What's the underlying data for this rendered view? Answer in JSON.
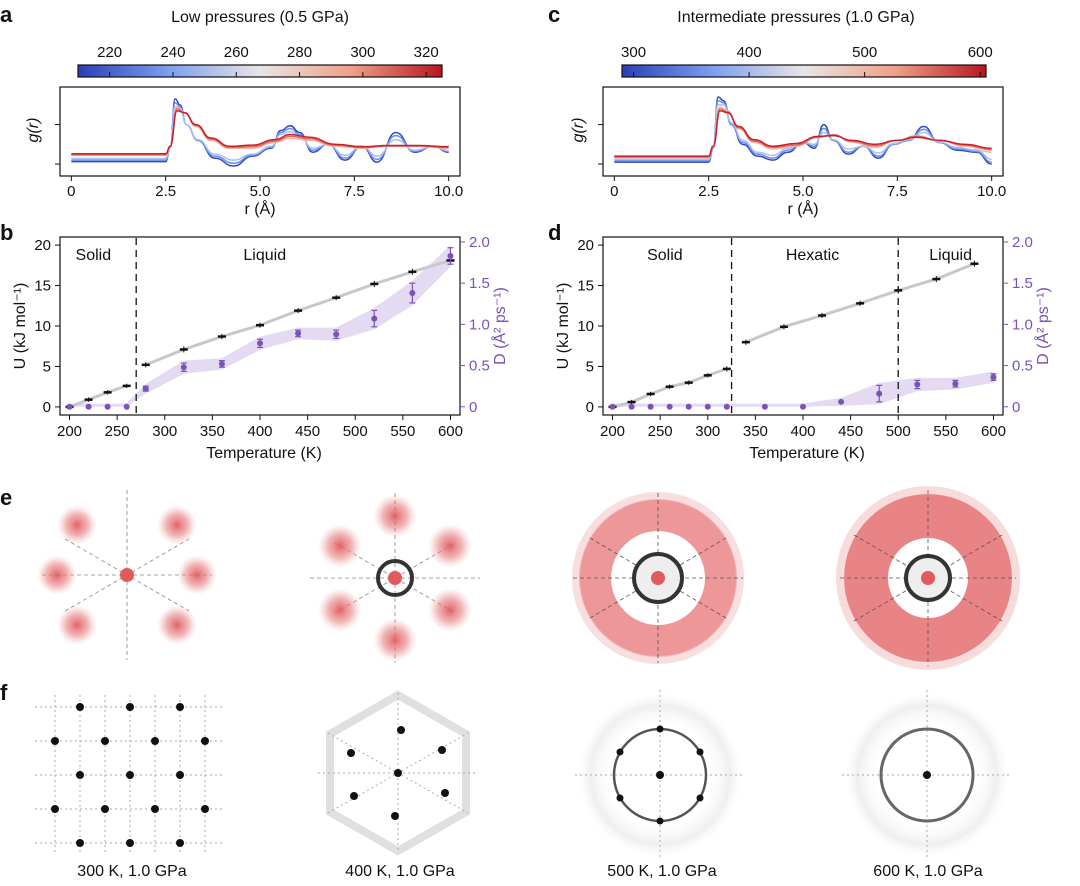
{
  "panel_labels": {
    "a": "a",
    "b": "b",
    "c": "c",
    "d": "d",
    "e": "e",
    "f": "f"
  },
  "colors": {
    "purple": "#7b52b8",
    "purple_band": "#e4dbf3",
    "grey_line": "#c8c8c8",
    "blue": "#3a54c8",
    "red": "#c8202a",
    "spot_red": "#e05a5e"
  },
  "chart_data": [
    {
      "id": "a",
      "type": "line",
      "title": "Low pressures (0.5 GPa)",
      "colorbar_ticks": [
        "220",
        "240",
        "260",
        "280",
        "300",
        "320"
      ],
      "colorbar_range": [
        210,
        325
      ],
      "xlabel": "r (Å)",
      "ylabel": "g(r)",
      "xlim": [
        -0.3,
        10.3
      ],
      "xticks": [
        "0",
        "2.5",
        "5.0",
        "7.5",
        "10.0"
      ],
      "xtick_values": [
        0,
        2.5,
        5,
        7.5,
        10
      ],
      "series": [
        {
          "name": "220 K",
          "x": [
            0,
            2.5,
            2.62,
            2.75,
            2.88,
            3.05,
            3.35,
            3.8,
            4.3,
            4.8,
            5.3,
            5.55,
            5.8,
            6.05,
            6.4,
            6.8,
            7.25,
            7.7,
            8.1,
            8.6,
            9.1,
            9.6,
            10
          ],
          "y": [
            0.06,
            0.06,
            0.4,
            1.65,
            1.5,
            1.0,
            0.6,
            0.15,
            -0.05,
            0.2,
            0.4,
            0.85,
            0.97,
            0.8,
            0.3,
            0.5,
            0.1,
            0.45,
            0.05,
            0.8,
            0.3,
            0.45,
            0.3
          ]
        },
        {
          "name": "240 K",
          "x": [
            0,
            2.5,
            2.62,
            2.75,
            2.88,
            3.05,
            3.35,
            3.8,
            4.3,
            4.8,
            5.3,
            5.55,
            5.8,
            6.05,
            6.4,
            6.8,
            7.25,
            7.7,
            8.1,
            8.6,
            9.1,
            9.6,
            10
          ],
          "y": [
            0.1,
            0.1,
            0.4,
            1.55,
            1.45,
            1.0,
            0.6,
            0.2,
            0.02,
            0.22,
            0.42,
            0.8,
            0.9,
            0.75,
            0.35,
            0.5,
            0.15,
            0.45,
            0.12,
            0.72,
            0.32,
            0.45,
            0.32
          ]
        },
        {
          "name": "260 K",
          "x": [
            0,
            2.5,
            2.62,
            2.75,
            2.88,
            3.05,
            3.35,
            3.8,
            4.3,
            4.8,
            5.3,
            5.55,
            5.8,
            6.05,
            6.4,
            6.8,
            7.25,
            7.7,
            8.1,
            8.6,
            9.1,
            9.6,
            10
          ],
          "y": [
            0.14,
            0.14,
            0.4,
            1.45,
            1.4,
            1.0,
            0.62,
            0.25,
            0.1,
            0.25,
            0.45,
            0.75,
            0.82,
            0.7,
            0.4,
            0.5,
            0.22,
            0.45,
            0.2,
            0.62,
            0.35,
            0.45,
            0.34
          ]
        },
        {
          "name": "280 K",
          "x": [
            0,
            2.5,
            2.62,
            2.8,
            3.0,
            3.3,
            3.7,
            4.2,
            4.8,
            5.4,
            5.8,
            6.3,
            7.0,
            7.7,
            8.4,
            9.2,
            10
          ],
          "y": [
            0.22,
            0.22,
            0.45,
            1.45,
            1.3,
            0.95,
            0.6,
            0.4,
            0.4,
            0.55,
            0.65,
            0.6,
            0.45,
            0.4,
            0.45,
            0.45,
            0.4
          ]
        },
        {
          "name": "300 K",
          "x": [
            0,
            2.5,
            2.62,
            2.8,
            3.0,
            3.3,
            3.7,
            4.2,
            4.8,
            5.4,
            5.8,
            6.3,
            7.0,
            7.7,
            8.4,
            9.2,
            10
          ],
          "y": [
            0.24,
            0.24,
            0.45,
            1.4,
            1.3,
            0.98,
            0.63,
            0.42,
            0.44,
            0.58,
            0.7,
            0.64,
            0.48,
            0.42,
            0.46,
            0.46,
            0.42
          ]
        },
        {
          "name": "320 K",
          "x": [
            0,
            2.5,
            2.62,
            2.8,
            3.0,
            3.3,
            3.7,
            4.2,
            4.8,
            5.4,
            5.8,
            6.3,
            7.0,
            7.7,
            8.4,
            9.2,
            10
          ],
          "y": [
            0.26,
            0.26,
            0.45,
            1.35,
            1.3,
            1.0,
            0.66,
            0.45,
            0.48,
            0.62,
            0.75,
            0.68,
            0.5,
            0.44,
            0.47,
            0.47,
            0.44
          ]
        }
      ]
    },
    {
      "id": "c",
      "type": "line",
      "title": "Intermediate pressures (1.0  GPa)",
      "colorbar_ticks": [
        "300",
        "400",
        "500",
        "600"
      ],
      "colorbar_range": [
        290,
        605
      ],
      "xlabel": "r (Å)",
      "ylabel": "g(r)",
      "xlim": [
        -0.3,
        10.3
      ],
      "xticks": [
        "0",
        "2.5",
        "5.0",
        "7.5",
        "10.0"
      ],
      "xtick_values": [
        0,
        2.5,
        5,
        7.5,
        10
      ],
      "series": [
        {
          "name": "300 K",
          "x": [
            0,
            2.5,
            2.62,
            2.75,
            2.9,
            3.1,
            3.4,
            3.8,
            4.2,
            4.6,
            5.0,
            5.3,
            5.55,
            5.8,
            6.2,
            6.6,
            7.0,
            7.4,
            7.8,
            8.2,
            8.6,
            9.1,
            9.6,
            10
          ],
          "y": [
            0.05,
            0.05,
            0.4,
            1.7,
            1.6,
            1.0,
            0.5,
            0.2,
            0.1,
            0.3,
            0.55,
            0.4,
            1.0,
            0.6,
            0.25,
            0.45,
            0.15,
            0.5,
            0.6,
            0.95,
            0.55,
            0.35,
            0.3,
            0.0
          ]
        },
        {
          "name": "350 K",
          "x": [
            0,
            2.5,
            2.62,
            2.75,
            2.9,
            3.1,
            3.4,
            3.8,
            4.2,
            4.6,
            5.0,
            5.3,
            5.55,
            5.8,
            6.2,
            6.6,
            7.0,
            7.4,
            7.8,
            8.2,
            8.6,
            9.1,
            9.6,
            10
          ],
          "y": [
            0.08,
            0.08,
            0.4,
            1.6,
            1.55,
            1.0,
            0.55,
            0.25,
            0.15,
            0.35,
            0.55,
            0.45,
            0.9,
            0.6,
            0.3,
            0.45,
            0.2,
            0.5,
            0.6,
            0.88,
            0.55,
            0.38,
            0.32,
            0.05
          ]
        },
        {
          "name": "400 K",
          "x": [
            0,
            2.5,
            2.62,
            2.75,
            2.9,
            3.1,
            3.4,
            3.8,
            4.2,
            4.6,
            5.0,
            5.3,
            5.55,
            5.8,
            6.2,
            6.6,
            7.0,
            7.4,
            7.8,
            8.2,
            8.6,
            9.1,
            9.6,
            10
          ],
          "y": [
            0.12,
            0.12,
            0.42,
            1.5,
            1.5,
            1.05,
            0.6,
            0.3,
            0.22,
            0.4,
            0.55,
            0.5,
            0.8,
            0.62,
            0.38,
            0.45,
            0.28,
            0.52,
            0.62,
            0.8,
            0.56,
            0.42,
            0.35,
            0.12
          ]
        },
        {
          "name": "450 K",
          "x": [
            0,
            2.5,
            2.62,
            2.8,
            3.0,
            3.3,
            3.7,
            4.2,
            4.8,
            5.4,
            5.8,
            6.3,
            6.9,
            7.5,
            8.0,
            8.6,
            9.3,
            10
          ],
          "y": [
            0.16,
            0.16,
            0.45,
            1.45,
            1.35,
            0.9,
            0.55,
            0.38,
            0.45,
            0.68,
            0.75,
            0.55,
            0.42,
            0.6,
            0.72,
            0.6,
            0.45,
            0.3
          ]
        },
        {
          "name": "500 K",
          "x": [
            0,
            2.5,
            2.62,
            2.8,
            3.0,
            3.3,
            3.7,
            4.2,
            4.8,
            5.4,
            5.8,
            6.3,
            6.9,
            7.5,
            8.0,
            8.6,
            9.3,
            10
          ],
          "y": [
            0.18,
            0.18,
            0.45,
            1.4,
            1.32,
            0.92,
            0.58,
            0.42,
            0.48,
            0.68,
            0.74,
            0.58,
            0.46,
            0.6,
            0.7,
            0.6,
            0.48,
            0.36
          ]
        },
        {
          "name": "600 K",
          "x": [
            0,
            2.5,
            2.62,
            2.8,
            3.0,
            3.3,
            3.7,
            4.2,
            4.8,
            5.4,
            5.8,
            6.3,
            6.9,
            7.5,
            8.0,
            8.6,
            9.3,
            10
          ],
          "y": [
            0.2,
            0.2,
            0.45,
            1.35,
            1.3,
            0.95,
            0.62,
            0.45,
            0.52,
            0.7,
            0.72,
            0.6,
            0.5,
            0.6,
            0.68,
            0.6,
            0.5,
            0.4
          ]
        }
      ]
    },
    {
      "id": "b",
      "type": "line",
      "xlabel": "Temperature (K)",
      "ylabel": "U (kJ mol⁻¹)",
      "ylabel_right": "D (Å² ps⁻¹)",
      "xlim": [
        190,
        610
      ],
      "ylim": [
        -1,
        21
      ],
      "ylim_right": [
        -0.1,
        2.06
      ],
      "xticks": [
        "200",
        "250",
        "300",
        "350",
        "400",
        "450",
        "500",
        "550",
        "600"
      ],
      "xtick_values": [
        200,
        250,
        300,
        350,
        400,
        450,
        500,
        550,
        600
      ],
      "yticks": [
        "0",
        "5",
        "10",
        "15",
        "20"
      ],
      "ytick_values": [
        0,
        5,
        10,
        15,
        20
      ],
      "yticks_right": [
        "0",
        "0.5",
        "1.0",
        "1.5",
        "2.0"
      ],
      "ytick_right_values": [
        0,
        0.5,
        1,
        1.5,
        2
      ],
      "phase_lines": [
        270
      ],
      "phase_labels": [
        {
          "text": "Solid",
          "x": 225
        },
        {
          "text": "Liquid",
          "x": 405
        }
      ],
      "U": {
        "x": [
          200,
          220,
          240,
          260,
          280,
          320,
          360,
          400,
          440,
          480,
          520,
          560,
          600
        ],
        "y": [
          0.0,
          0.9,
          1.8,
          2.6,
          5.2,
          7.1,
          8.7,
          10.1,
          11.9,
          13.5,
          15.2,
          16.7,
          18.1
        ],
        "err": [
          0.15,
          0.15,
          0.15,
          0.15,
          0.2,
          0.25,
          0.2,
          0.2,
          0.2,
          0.2,
          0.25,
          0.25,
          0.3
        ]
      },
      "D": {
        "x": [
          200,
          220,
          240,
          260,
          280,
          320,
          360,
          400,
          440,
          480,
          520,
          560,
          600
        ],
        "y": [
          0.0,
          0.0,
          0.0,
          0.0,
          0.22,
          0.48,
          0.52,
          0.77,
          0.89,
          0.88,
          1.07,
          1.38,
          1.83
        ],
        "err": [
          0.01,
          0.01,
          0.01,
          0.01,
          0.03,
          0.05,
          0.04,
          0.05,
          0.04,
          0.05,
          0.1,
          0.12,
          0.1
        ]
      }
    },
    {
      "id": "d",
      "type": "line",
      "xlabel": "Temperature (K)",
      "ylabel": "U (kJ mol⁻¹)",
      "ylabel_right": "D (Å² ps⁻¹)",
      "xlim": [
        190,
        610
      ],
      "ylim": [
        -1,
        21
      ],
      "ylim_right": [
        -0.1,
        2.06
      ],
      "xticks": [
        "200",
        "250",
        "300",
        "350",
        "400",
        "450",
        "500",
        "550",
        "600"
      ],
      "xtick_values": [
        200,
        250,
        300,
        350,
        400,
        450,
        500,
        550,
        600
      ],
      "yticks": [
        "0",
        "5",
        "10",
        "15",
        "20"
      ],
      "ytick_values": [
        0,
        5,
        10,
        15,
        20
      ],
      "yticks_right": [
        "0",
        "0.5",
        "1.0",
        "1.5",
        "2.0"
      ],
      "ytick_right_values": [
        0,
        0.5,
        1,
        1.5,
        2
      ],
      "phase_lines": [
        325,
        500
      ],
      "phase_labels": [
        {
          "text": "Solid",
          "x": 255
        },
        {
          "text": "Hexatic",
          "x": 410
        },
        {
          "text": "Liquid",
          "x": 555
        }
      ],
      "U": {
        "x": [
          200,
          220,
          240,
          260,
          280,
          300,
          320,
          340,
          380,
          420,
          460,
          500,
          540,
          580
        ],
        "y": [
          0.0,
          0.6,
          1.6,
          2.5,
          3.0,
          3.9,
          4.7,
          8.0,
          9.9,
          11.3,
          12.8,
          14.4,
          15.8,
          17.7
        ],
        "err": [
          0.15,
          0.15,
          0.15,
          0.15,
          0.15,
          0.15,
          0.2,
          0.2,
          0.2,
          0.2,
          0.2,
          0.25,
          0.25,
          0.25
        ]
      },
      "D": {
        "x": [
          200,
          220,
          240,
          260,
          280,
          300,
          320,
          360,
          400,
          440,
          480,
          520,
          560,
          600
        ],
        "y": [
          0.0,
          0.0,
          0.0,
          0.0,
          0.0,
          0.0,
          0.0,
          0.0,
          0.0,
          0.06,
          0.16,
          0.27,
          0.28,
          0.36
        ],
        "err": [
          0.01,
          0.01,
          0.01,
          0.01,
          0.01,
          0.01,
          0.01,
          0.01,
          0.01,
          0.02,
          0.1,
          0.05,
          0.04,
          0.04
        ]
      }
    }
  ],
  "f_captions": [
    "300 K, 1.0 GPa",
    "400 K, 1.0 GPa",
    "500 K, 1.0 GPa",
    "600 K, 1.0 GPa"
  ]
}
